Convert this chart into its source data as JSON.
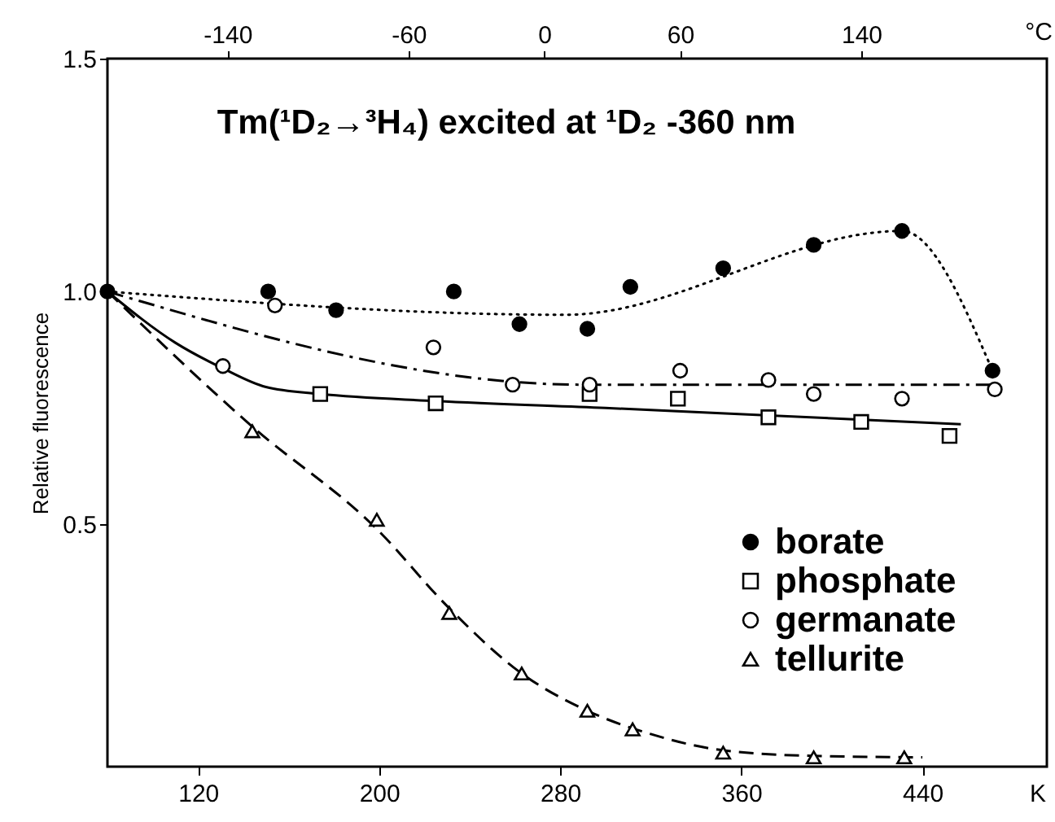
{
  "chart_data": {
    "type": "scatter",
    "title": "Tm(¹D₂→³H₄) excited at ¹D₂ -360 nm",
    "ylabel": "Relative fluorescence",
    "xlabel": "K",
    "x2label": "°C",
    "xlim": [
      80,
      495
    ],
    "xticks": [
      120,
      200,
      280,
      360,
      440
    ],
    "x2lim": [
      -193,
      222
    ],
    "x2ticks": [
      -140,
      -60,
      0,
      60,
      140
    ],
    "ylim": [
      -0.02,
      1.5
    ],
    "yticks": [
      {
        "value": 0.5,
        "label": "0.5"
      },
      {
        "value": 1,
        "label": "1.0"
      },
      {
        "value": 1.5,
        "label": "1.5"
      }
    ],
    "grid": false,
    "legend": "bottom right",
    "series": [
      {
        "name": "borate",
        "marker": "circle",
        "color": "#000000",
        "x": [
          80,
          151,
          181,
          233,
          262,
          292,
          311,
          352,
          392,
          431,
          471
        ],
        "values": [
          1.0,
          1.0,
          0.96,
          1.0,
          0.93,
          0.92,
          1.01,
          1.05,
          1.1,
          1.13,
          0.83
        ]
      },
      {
        "name": "phosphate",
        "marker": "square",
        "color": "#ffffff",
        "x": [
          174,
          225,
          293,
          332,
          372,
          413,
          452
        ],
        "values": [
          0.78,
          0.76,
          0.78,
          0.77,
          0.73,
          0.72,
          0.69
        ]
      },
      {
        "name": "germanate",
        "marker": "circle",
        "color": "#ffffff",
        "x": [
          131,
          154,
          224,
          259,
          293,
          333,
          372,
          392,
          431,
          472
        ],
        "values": [
          0.84,
          0.97,
          0.88,
          0.8,
          0.8,
          0.83,
          0.81,
          0.78,
          0.77,
          0.79
        ]
      },
      {
        "name": "tellurite",
        "marker": "triangle",
        "color": "#ffffff",
        "x": [
          144,
          199,
          231,
          263,
          292,
          312,
          352,
          392,
          432
        ],
        "values": [
          0.7,
          0.51,
          0.31,
          0.18,
          0.1,
          0.06,
          0.01,
          0,
          0
        ]
      },
      {
        "type": "line",
        "line_style": "dotted",
        "color": "#000000",
        "x": [
          80,
          282,
          431,
          471
        ],
        "values": [
          1.0,
          0.95,
          1.13,
          0.83
        ]
      },
      {
        "type": "line",
        "line_style": "solid",
        "color": "#000000",
        "x": [
          80,
          110,
          131,
          150,
          174,
          225,
          300,
          457
        ],
        "values": [
          1.0,
          0.89,
          0.835,
          0.795,
          0.78,
          0.765,
          0.75,
          0.715
        ]
      },
      {
        "type": "line",
        "line_style": "dashdot",
        "color": "#000000",
        "x": [
          80,
          290,
          472
        ],
        "values": [
          1.0,
          0.8,
          0.8
        ]
      },
      {
        "type": "line",
        "line_style": "dashed",
        "color": "#000000",
        "x": [
          80,
          144,
          199,
          231,
          263,
          292,
          320,
          352,
          392,
          440
        ],
        "values": [
          1.0,
          0.71,
          0.49,
          0.32,
          0.18,
          0.1,
          0.05,
          0.015,
          0.003,
          0
        ]
      }
    ]
  }
}
